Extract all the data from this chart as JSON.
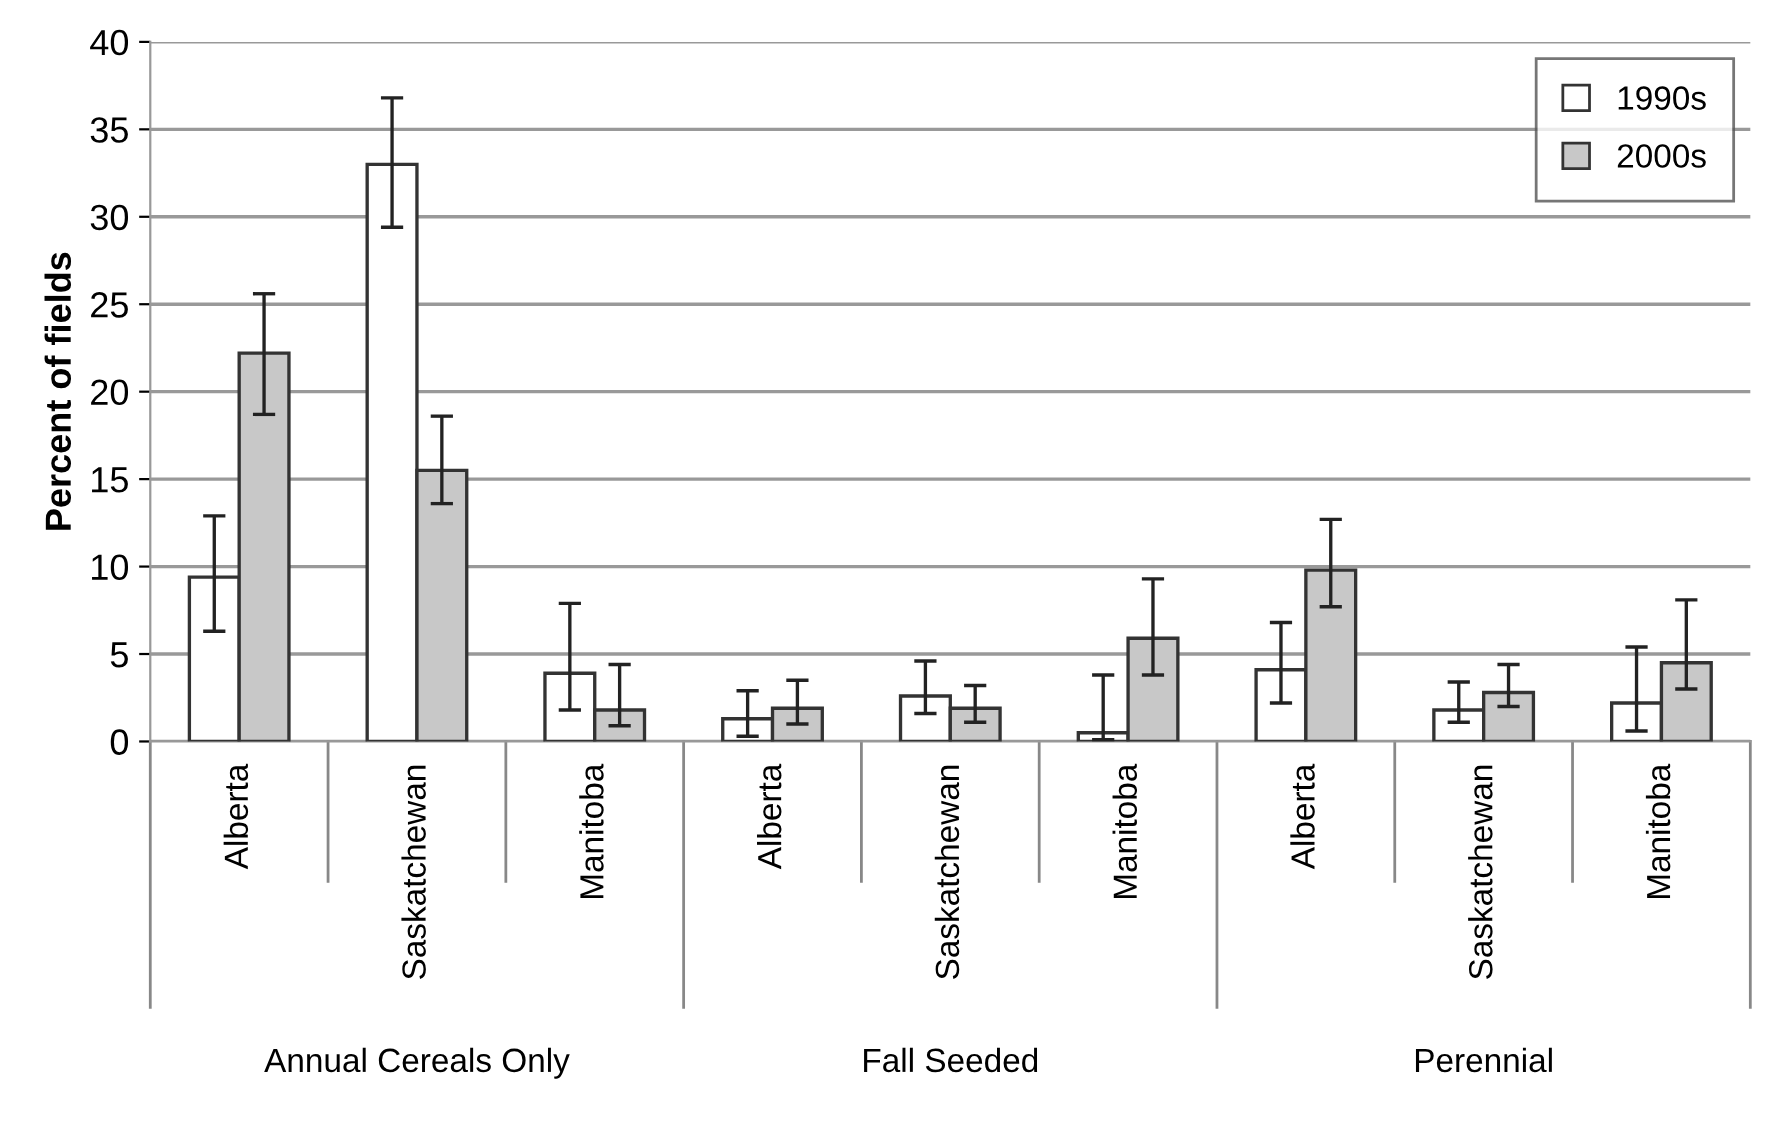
{
  "chart_data": {
    "type": "bar",
    "ylabel": "Percent of fields",
    "categories": [
      "Alberta",
      "Saskatchewan",
      "Manitoba",
      "Alberta",
      "Saskatchewan",
      "Manitoba",
      "Alberta",
      "Saskatchewan",
      "Manitoba"
    ],
    "series": [
      {
        "name": "1990s",
        "color": "#ffffff",
        "values": [
          9.4,
          33.0,
          3.9,
          1.3,
          2.6,
          0.5,
          4.1,
          1.8,
          2.2
        ],
        "errors": [
          [
            6.3,
            12.9
          ],
          [
            29.4,
            36.8
          ],
          [
            1.8,
            7.9
          ],
          [
            0.3,
            2.9
          ],
          [
            1.6,
            4.6
          ],
          [
            0.1,
            3.8
          ],
          [
            2.2,
            6.8
          ],
          [
            1.1,
            3.4
          ],
          [
            0.6,
            5.4
          ]
        ]
      },
      {
        "name": "2000s",
        "color": "#c8c8c8",
        "values": [
          22.2,
          15.5,
          1.8,
          1.9,
          1.9,
          5.9,
          9.8,
          2.8,
          4.5
        ],
        "errors": [
          [
            18.7,
            25.6
          ],
          [
            13.6,
            18.6
          ],
          [
            0.9,
            4.4
          ],
          [
            1.0,
            3.5
          ],
          [
            1.1,
            3.2
          ],
          [
            3.8,
            9.3
          ],
          [
            7.7,
            12.7
          ],
          [
            2.0,
            4.4
          ],
          [
            3.0,
            8.1
          ]
        ]
      }
    ],
    "annotations": [
      "Annual Cereals Only",
      "Fall Seeded",
      "Perennial"
    ],
    "ylim": [
      0,
      40
    ],
    "yticks": [
      0,
      5,
      10,
      15,
      20,
      25,
      30,
      35,
      40
    ],
    "grid": "y",
    "legend": "top right"
  }
}
